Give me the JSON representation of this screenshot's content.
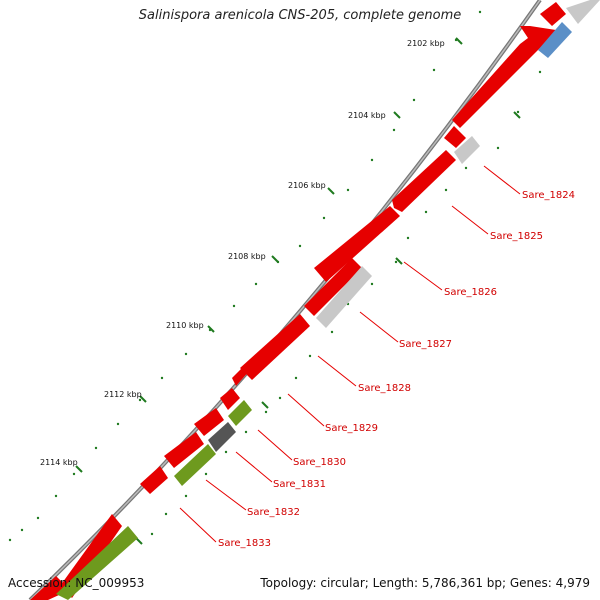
{
  "title": "Salinispora arenicola CNS-205, complete genome",
  "footer": {
    "accession": "Accession: NC_009953",
    "summary": "Topology: circular; Length: 5,786,361 bp; Genes: 4,979"
  },
  "ticks": [
    {
      "label": "2102 kbp"
    },
    {
      "label": "2104 kbp"
    },
    {
      "label": "2106 kbp"
    },
    {
      "label": "2108 kbp"
    },
    {
      "label": "2110 kbp"
    },
    {
      "label": "2112 kbp"
    },
    {
      "label": "2114 kbp"
    }
  ],
  "gene_labels": [
    {
      "label": "Sare_1824"
    },
    {
      "label": "Sare_1825"
    },
    {
      "label": "Sare_1826"
    },
    {
      "label": "Sare_1827"
    },
    {
      "label": "Sare_1828"
    },
    {
      "label": "Sare_1829"
    },
    {
      "label": "Sare_1830"
    },
    {
      "label": "Sare_1831"
    },
    {
      "label": "Sare_1832"
    },
    {
      "label": "Sare_1833"
    }
  ],
  "colors": {
    "cds": "#e60000",
    "rna": "#6e9a1e",
    "pseudo": "#c8c8c8",
    "other": "#5b8fc7",
    "backbone": "#888888",
    "tick": "#1f7a1f",
    "label_line": "#e60000"
  }
}
